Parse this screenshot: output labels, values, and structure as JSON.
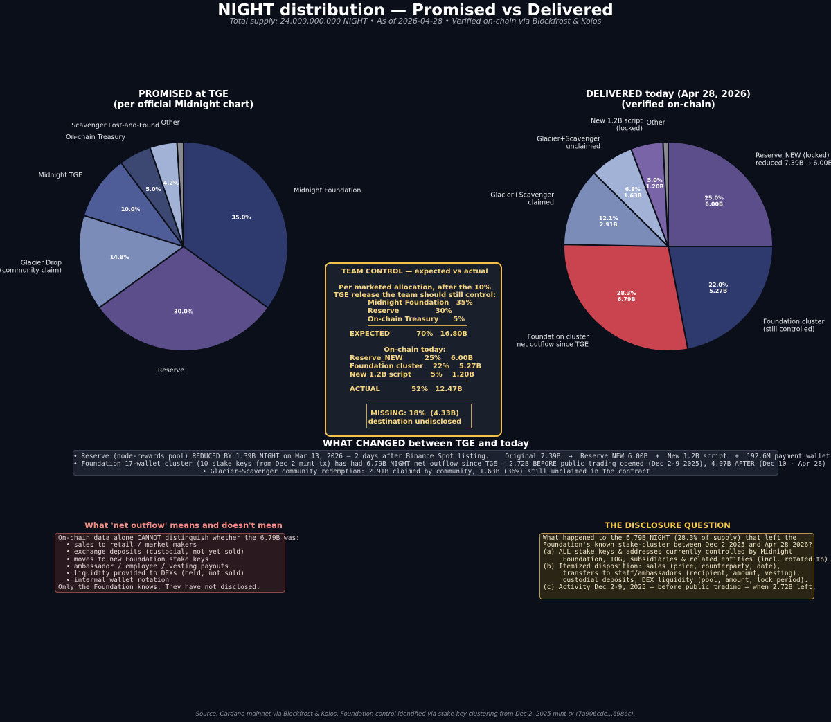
{
  "title": "NIGHT distribution — Promised vs Delivered",
  "subtitle": "Total supply: 24,000,000,000 NIGHT  •  As of 2026-04-28  •  Verified on-chain via Blockfrost & Koios",
  "chart_data": [
    {
      "type": "pie",
      "title": "PROMISED at TGE\n(per official Midnight chart)",
      "slices": [
        {
          "label": "Midnight Foundation",
          "value": 35.0,
          "pct_label": "35.0%",
          "color": "#2e3a6e"
        },
        {
          "label": "Reserve",
          "value": 30.0,
          "pct_label": "30.0%",
          "color": "#5b4e8a"
        },
        {
          "label": "Glacier Drop\n(community claim)",
          "value": 14.8,
          "pct_label": "14.8%",
          "color": "#7b8cb8"
        },
        {
          "label": "Midnight TGE",
          "value": 10.0,
          "pct_label": "10.0%",
          "color": "#4e5c98"
        },
        {
          "label": "On-chain Treasury",
          "value": 5.0,
          "pct_label": "5.0%",
          "color": "#3c4872"
        },
        {
          "label": "Scavenger Lost-and-Found",
          "value": 4.2,
          "pct_label": "4.2%",
          "color": "#a2b1d6"
        },
        {
          "label": "Other",
          "value": 1.0,
          "pct_label": "",
          "color": "#8a8a92"
        }
      ]
    },
    {
      "type": "pie",
      "title": "DELIVERED today (Apr 28, 2026)\n(verified on-chain)",
      "slices": [
        {
          "label": "Reserve_NEW (locked)\nreduced 7.39B → 6.00B",
          "value": 25.0,
          "pct_label": "25.0%\n6.00B",
          "color": "#5b4e8a"
        },
        {
          "label": "Foundation cluster\n(still controlled)",
          "value": 22.0,
          "pct_label": "22.0%\n5.27B",
          "color": "#2e3a6e"
        },
        {
          "label": "Foundation cluster\nnet outflow since TGE",
          "value": 28.3,
          "pct_label": "28.3%\n6.79B",
          "color": "#c9444e"
        },
        {
          "label": "Glacier+Scavenger\nclaimed",
          "value": 12.1,
          "pct_label": "12.1%\n2.91B",
          "color": "#7b8cb8"
        },
        {
          "label": "Glacier+Scavenger\nunclaimed",
          "value": 6.8,
          "pct_label": "6.8%\n1.63B",
          "color": "#a2b1d6"
        },
        {
          "label": "New 1.2B script\n(locked)",
          "value": 5.0,
          "pct_label": "5.0%\n1.20B",
          "color": "#7a64a8"
        },
        {
          "label": "Other",
          "value": 0.8,
          "pct_label": "",
          "color": "#8a8a92"
        }
      ]
    }
  ],
  "team_box": {
    "title": "TEAM CONTROL — expected vs actual",
    "intro1": "Per marketed allocation, after the 10%",
    "intro2": "TGE release the team should still control:",
    "rows_expected": [
      "Midnight Foundation   35%",
      "Reserve               30%",
      "On-chain Treasury      5%"
    ],
    "expected": "EXPECTED           70%   16.80B",
    "onchain_head": "On-chain today:",
    "rows_actual": [
      "Reserve_NEW         25%    6.00B",
      "Foundation cluster    22%    5.27B",
      "New 1.2B script        5%    1.20B"
    ],
    "actual": "ACTUAL             52%   12.47B",
    "missing1": "MISSING: 18%  (4.33B)",
    "missing2": "destination undisclosed"
  },
  "changed": {
    "title": "WHAT CHANGED between TGE and today",
    "lines": [
      "• Reserve (node-rewards pool) REDUCED BY 1.39B NIGHT on Mar 13, 2026 — 2 days after Binance Spot listing.    Original 7.39B  →  Reserve_NEW 6.00B  +  New 1.2B script  +  192.6M payment wallet",
      "• Foundation 17-wallet cluster (10 stake keys from Dec 2 mint tx) has had 6.79B NIGHT net outflow since TGE — 2.72B BEFORE public trading opened (Dec 2-9 2025), 4.07B AFTER (Dec 10 - Apr 28)",
      "• Glacier+Scavenger community redemption: 2.91B claimed by community, 1.63B (36%) still unclaimed in the contract"
    ]
  },
  "net_outflow": {
    "title": "What 'net outflow' means and doesn't mean",
    "lines": [
      "On-chain data alone CANNOT distinguish whether the 6.79B was:",
      "  • sales to retail / market makers",
      "  • exchange deposits (custodial, not yet sold)",
      "  • moves to new Foundation stake keys",
      "  • ambassador / employee / vesting payouts",
      "  • liquidity provided to DEXs (held, not sold)",
      "  • internal wallet rotation",
      "Only the Foundation knows. They have not disclosed."
    ]
  },
  "disclosure": {
    "title": "THE DISCLOSURE QUESTION",
    "lines": [
      "What happened to the 6.79B NIGHT (28.3% of supply) that left the",
      "Foundation's known stake-cluster between Dec 2 2025 and Apr 28 2026?",
      "",
      "(a) ALL stake keys & addresses currently controlled by Midnight",
      "     Foundation, IOG, subsidiaries & related entities (incl. rotated to).",
      "(b) Itemized disposition: sales (price, counterparty, date),",
      "     transfers to staff/ambassadors (recipient, amount, vesting),",
      "     custodial deposits, DEX liquidity (pool, amount, lock period).",
      "(c) Activity Dec 2-9, 2025 — before public trading — when 2.72B left."
    ]
  },
  "source": "Source: Cardano mainnet via Blockfrost & Koios. Foundation control identified via stake-key clustering from Dec 2, 2025 mint tx (7a906cde...6986c)."
}
